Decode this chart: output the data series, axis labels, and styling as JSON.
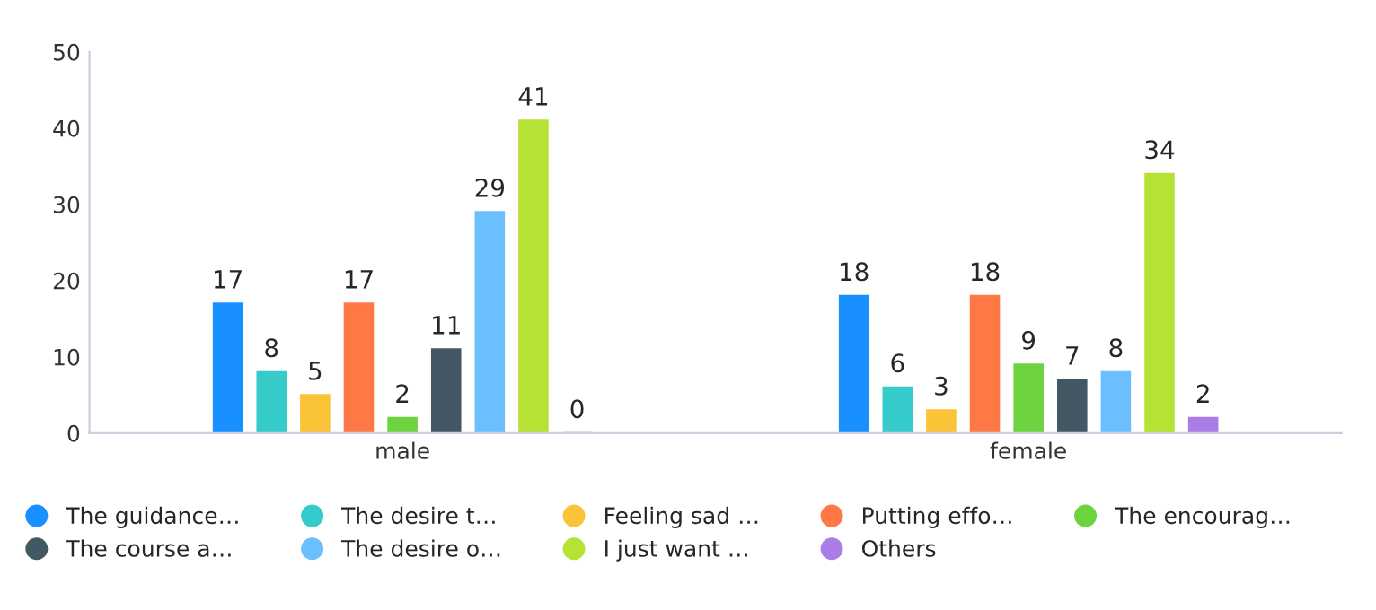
{
  "chart_data": {
    "type": "bar",
    "categories": [
      "male",
      "female"
    ],
    "series": [
      {
        "name": "The guidance…",
        "color": "#1890ff",
        "values": [
          17,
          18
        ]
      },
      {
        "name": "The desire t…",
        "color": "#36cbcb",
        "values": [
          8,
          6
        ]
      },
      {
        "name": "Feeling sad …",
        "color": "#fbc337",
        "values": [
          5,
          3
        ]
      },
      {
        "name": "Putting effo…",
        "color": "#ff7845",
        "values": [
          17,
          18
        ]
      },
      {
        "name": "The encourag…",
        "color": "#6dd43f",
        "values": [
          2,
          9
        ]
      },
      {
        "name": "The course a…",
        "color": "#435764",
        "values": [
          11,
          7
        ]
      },
      {
        "name": "The desire o…",
        "color": "#6cbfff",
        "values": [
          29,
          8
        ]
      },
      {
        "name": "I just want …",
        "color": "#b6e236",
        "values": [
          41,
          34
        ]
      },
      {
        "name": "Others",
        "color": "#aa7ee6",
        "values": [
          0,
          2
        ]
      }
    ],
    "ylim": [
      0,
      50
    ],
    "yticks": [
      0,
      10,
      20,
      30,
      40,
      50
    ],
    "grid": false,
    "legend": "bottom",
    "data_labels": true,
    "marker": "circle"
  }
}
